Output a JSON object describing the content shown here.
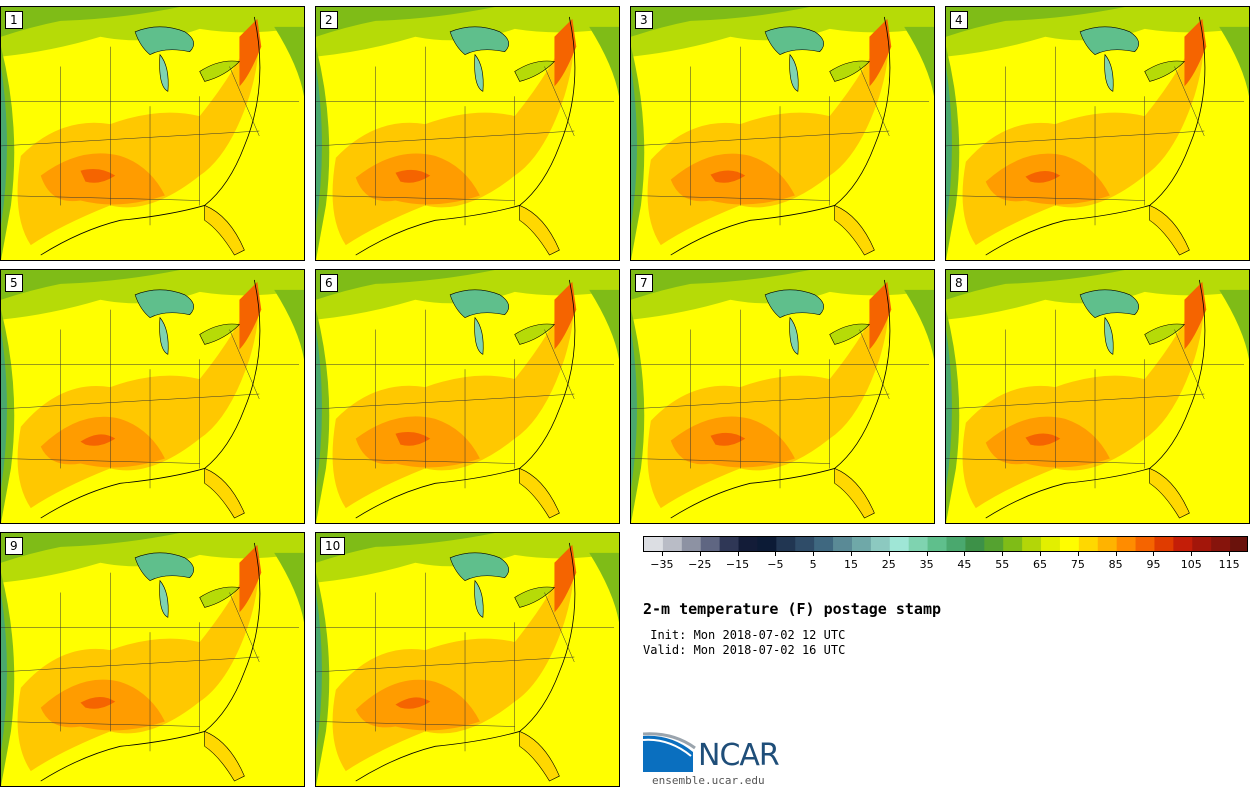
{
  "panels": [
    {
      "label": "1"
    },
    {
      "label": "2"
    },
    {
      "label": "3"
    },
    {
      "label": "4"
    },
    {
      "label": "5"
    },
    {
      "label": "6"
    },
    {
      "label": "7"
    },
    {
      "label": "8"
    },
    {
      "label": "9"
    },
    {
      "label": "10"
    }
  ],
  "colorbar": {
    "tick_labels": [
      "−35",
      "−25",
      "−15",
      "−5",
      "5",
      "15",
      "25",
      "35",
      "45",
      "55",
      "65",
      "75",
      "85",
      "95",
      "105",
      "115"
    ],
    "tick_values": [
      -35,
      -25,
      -15,
      -5,
      5,
      15,
      25,
      35,
      45,
      55,
      65,
      75,
      85,
      95,
      105,
      115
    ],
    "min": -40,
    "max": 120,
    "step": 5,
    "colors": [
      "#dcdee3",
      "#b9bcc6",
      "#8d92a3",
      "#5f6682",
      "#2f3756",
      "#131c38",
      "#0c1b36",
      "#213652",
      "#2f4c68",
      "#3f6880",
      "#5a8a96",
      "#6fa8a8",
      "#8cc9c0",
      "#9fe6d6",
      "#7fd3b0",
      "#5fbf8c",
      "#4aa86e",
      "#3d9148",
      "#55a230",
      "#7fbc17",
      "#b3d608",
      "#e2ef00",
      "#fffd00",
      "#ffd800",
      "#ffb300",
      "#ff8c00",
      "#f56400",
      "#e03c00",
      "#c41e08",
      "#a3160a",
      "#86140c",
      "#6a120c"
    ]
  },
  "title": "2-m temperature (F) postage stamp",
  "init_line": " Init: Mon 2018-07-02 12 UTC",
  "valid_line": "Valid: Mon 2018-07-02 16 UTC",
  "logo": {
    "text": "NCAR",
    "url": "ensemble.ucar.edu"
  }
}
